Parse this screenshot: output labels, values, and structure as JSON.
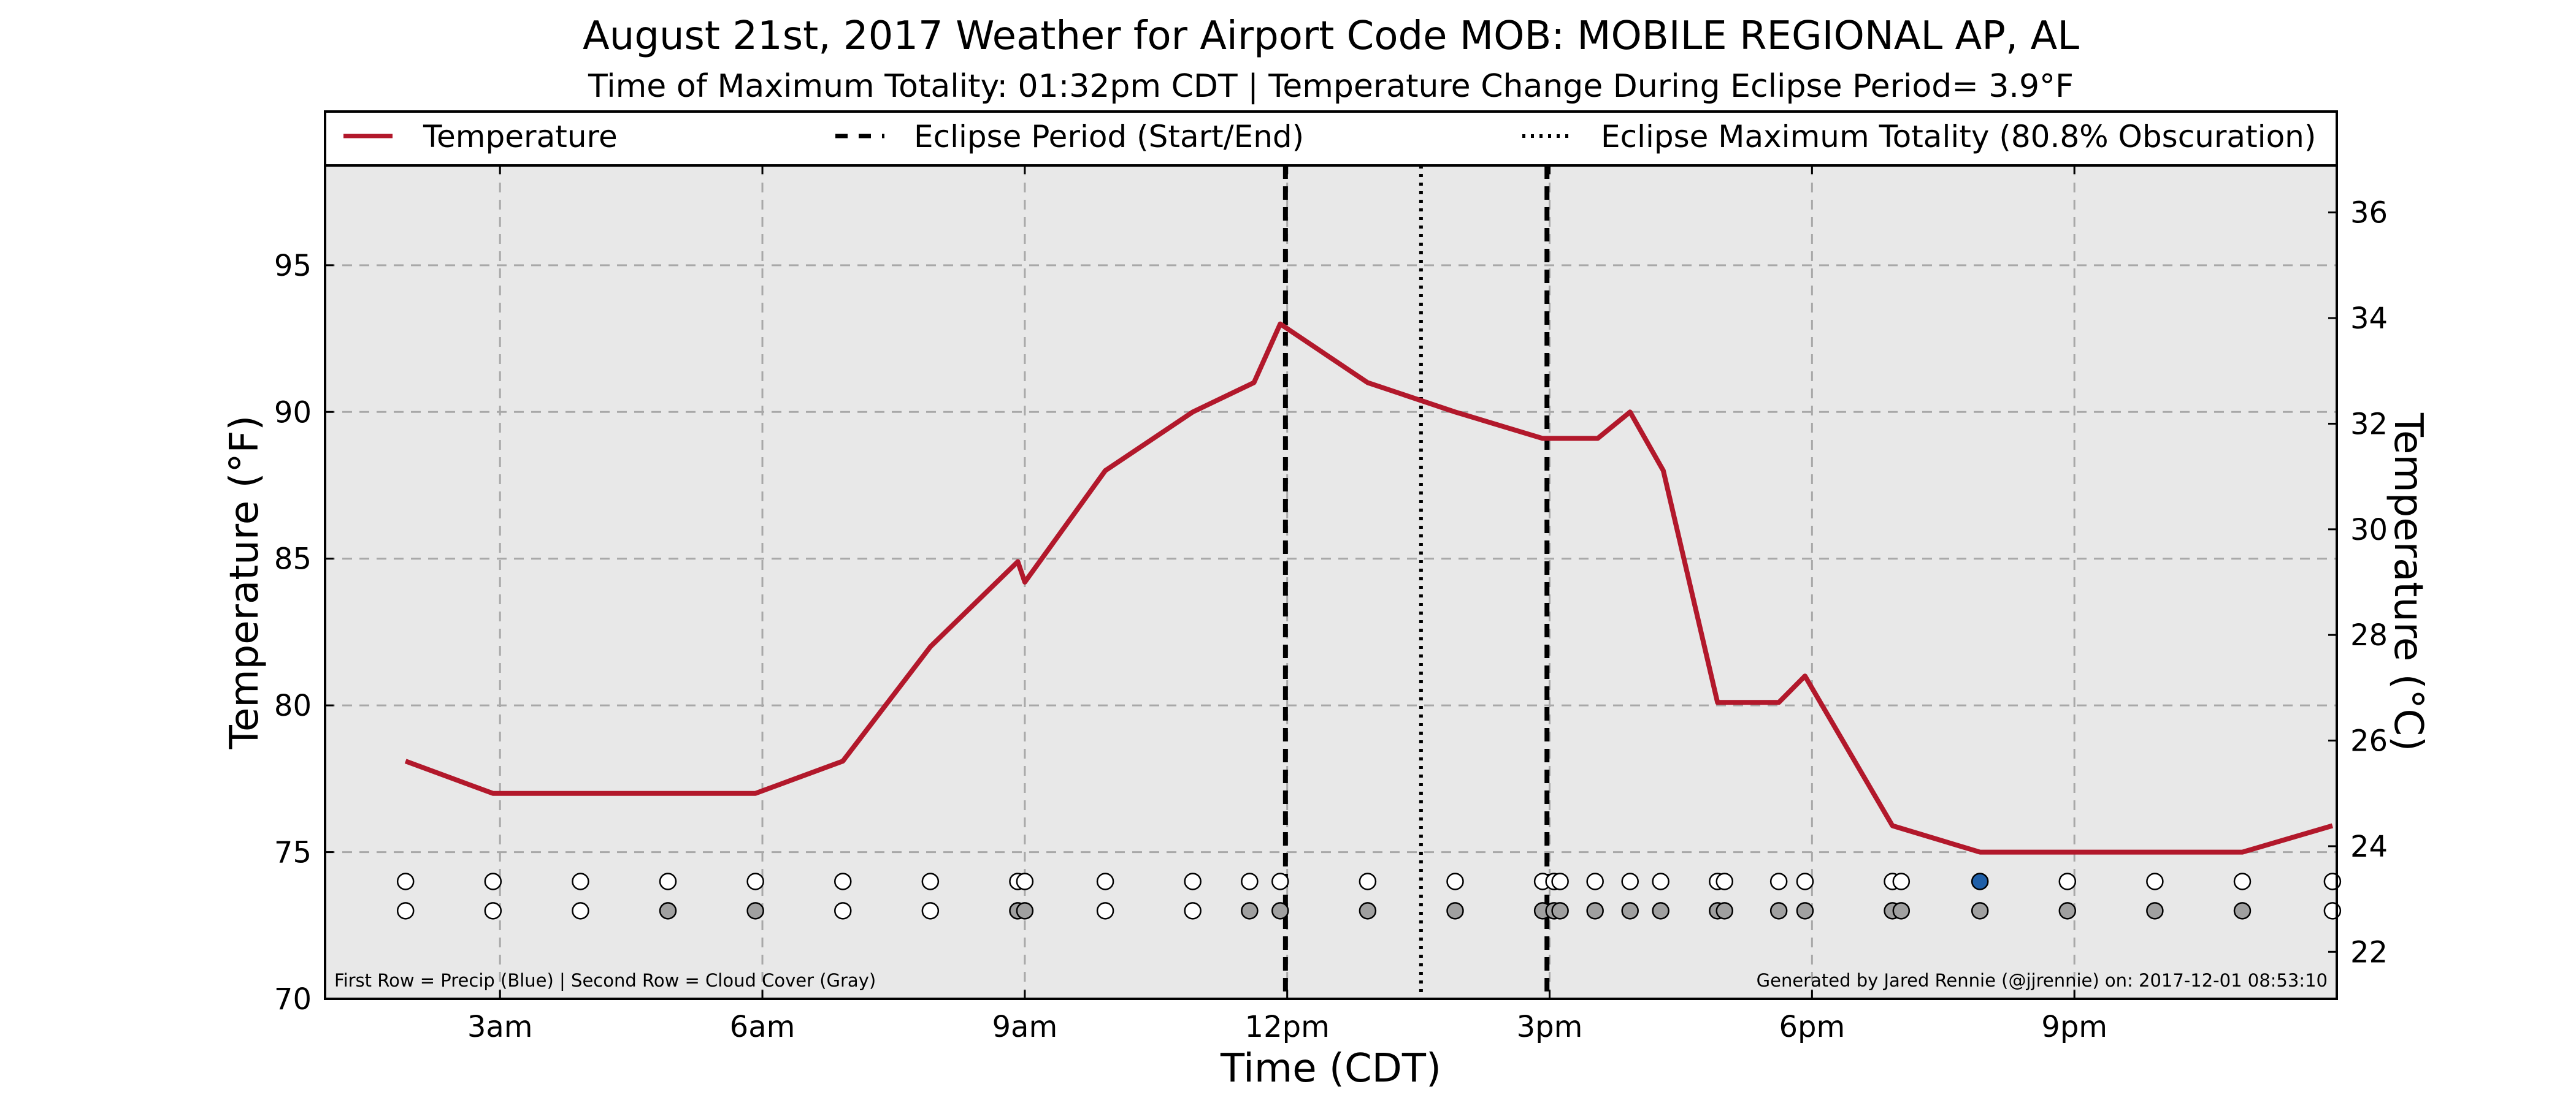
{
  "chart_data": {
    "type": "line",
    "title": "August 21st, 2017 Weather for Airport Code MOB: MOBILE REGIONAL AP, AL",
    "subtitle": "Time of Maximum Totality: 01:32pm CDT | Temperature Change During Eclipse Period= 3.9°F",
    "xlabel": "Time (CDT)",
    "ylabel": "Temperature (°F)",
    "ylabel_right": "Temperature (°C)",
    "xlim": [
      1.0,
      24.0
    ],
    "ylim": [
      70,
      98.4
    ],
    "ylim_right_C": [
      21.11,
      36.89
    ],
    "grid": true,
    "x_ticks": [
      {
        "value": 3,
        "label": "3am"
      },
      {
        "value": 6,
        "label": "6am"
      },
      {
        "value": 9,
        "label": "9am"
      },
      {
        "value": 12,
        "label": "12pm"
      },
      {
        "value": 15,
        "label": "3pm"
      },
      {
        "value": 18,
        "label": "6pm"
      },
      {
        "value": 21,
        "label": "9pm"
      }
    ],
    "y_ticks": [
      {
        "value": 70,
        "label": "70"
      },
      {
        "value": 75,
        "label": "75"
      },
      {
        "value": 80,
        "label": "80"
      },
      {
        "value": 85,
        "label": "85"
      },
      {
        "value": 90,
        "label": "90"
      },
      {
        "value": 95,
        "label": "95"
      }
    ],
    "y_ticks_right": [
      {
        "value": 22,
        "label": "22"
      },
      {
        "value": 24,
        "label": "24"
      },
      {
        "value": 26,
        "label": "26"
      },
      {
        "value": 28,
        "label": "28"
      },
      {
        "value": 30,
        "label": "30"
      },
      {
        "value": 32,
        "label": "32"
      },
      {
        "value": 34,
        "label": "34"
      },
      {
        "value": 36,
        "label": "36"
      }
    ],
    "series": [
      {
        "name": "Temperature",
        "color": "#b2182b",
        "x": [
          1.92,
          2.92,
          3.92,
          4.92,
          5.92,
          6.92,
          7.92,
          8.92,
          9.0,
          9.92,
          10.92,
          11.62,
          11.92,
          12.92,
          13.92,
          14.92,
          15.55,
          15.92,
          16.3,
          16.92,
          17.62,
          17.92,
          18.92,
          19.92,
          20.92,
          21.92,
          22.92,
          23.95
        ],
        "y": [
          78.1,
          77.0,
          77.0,
          77.0,
          77.0,
          78.1,
          82.0,
          84.9,
          84.2,
          88.0,
          90.0,
          91.0,
          93.0,
          91.0,
          90.0,
          89.1,
          89.1,
          90.0,
          88.0,
          80.1,
          80.1,
          81.0,
          75.9,
          75.0,
          75.0,
          75.0,
          75.0,
          75.9
        ]
      }
    ],
    "eclipse_period": {
      "start": 11.98,
      "end": 14.97,
      "line_color": "#000000"
    },
    "max_totality": {
      "x": 13.53,
      "line_color": "#000000"
    },
    "legend": {
      "placement": "top",
      "entries": [
        {
          "label": "Temperature",
          "style": "solid",
          "color": "#b2182b"
        },
        {
          "label": "Eclipse Period (Start/End)",
          "style": "dashed",
          "color": "#000000"
        },
        {
          "label": "Eclipse Maximum Totality (80.8% Obscuration)",
          "style": "dotted",
          "color": "#000000"
        }
      ]
    },
    "precip_row": {
      "y": 74,
      "points": [
        {
          "x": 1.92,
          "c": "white"
        },
        {
          "x": 2.92,
          "c": "white"
        },
        {
          "x": 3.92,
          "c": "white"
        },
        {
          "x": 4.92,
          "c": "white"
        },
        {
          "x": 5.92,
          "c": "white"
        },
        {
          "x": 6.92,
          "c": "white"
        },
        {
          "x": 7.92,
          "c": "white"
        },
        {
          "x": 8.92,
          "c": "white"
        },
        {
          "x": 9.0,
          "c": "white"
        },
        {
          "x": 9.92,
          "c": "white"
        },
        {
          "x": 10.92,
          "c": "white"
        },
        {
          "x": 11.57,
          "c": "white"
        },
        {
          "x": 11.92,
          "c": "white"
        },
        {
          "x": 12.92,
          "c": "white"
        },
        {
          "x": 13.92,
          "c": "white"
        },
        {
          "x": 14.92,
          "c": "white"
        },
        {
          "x": 15.05,
          "c": "white"
        },
        {
          "x": 15.12,
          "c": "white"
        },
        {
          "x": 15.52,
          "c": "white"
        },
        {
          "x": 15.92,
          "c": "white"
        },
        {
          "x": 16.27,
          "c": "white"
        },
        {
          "x": 16.92,
          "c": "white"
        },
        {
          "x": 17.0,
          "c": "white"
        },
        {
          "x": 17.62,
          "c": "white"
        },
        {
          "x": 17.92,
          "c": "white"
        },
        {
          "x": 18.92,
          "c": "white"
        },
        {
          "x": 19.02,
          "c": "white"
        },
        {
          "x": 19.92,
          "c": "blue"
        },
        {
          "x": 20.92,
          "c": "white"
        },
        {
          "x": 21.92,
          "c": "white"
        },
        {
          "x": 22.92,
          "c": "white"
        },
        {
          "x": 23.95,
          "c": "white"
        }
      ]
    },
    "cloud_row": {
      "y": 73,
      "points": [
        {
          "x": 1.92,
          "c": "white"
        },
        {
          "x": 2.92,
          "c": "white"
        },
        {
          "x": 3.92,
          "c": "white"
        },
        {
          "x": 4.92,
          "c": "gray"
        },
        {
          "x": 5.92,
          "c": "gray"
        },
        {
          "x": 6.92,
          "c": "white"
        },
        {
          "x": 7.92,
          "c": "white"
        },
        {
          "x": 8.92,
          "c": "gray"
        },
        {
          "x": 9.0,
          "c": "gray"
        },
        {
          "x": 9.92,
          "c": "white"
        },
        {
          "x": 10.92,
          "c": "white"
        },
        {
          "x": 11.57,
          "c": "gray"
        },
        {
          "x": 11.92,
          "c": "gray"
        },
        {
          "x": 12.92,
          "c": "gray"
        },
        {
          "x": 13.92,
          "c": "gray"
        },
        {
          "x": 14.92,
          "c": "gray"
        },
        {
          "x": 15.05,
          "c": "gray"
        },
        {
          "x": 15.12,
          "c": "gray"
        },
        {
          "x": 15.52,
          "c": "gray"
        },
        {
          "x": 15.92,
          "c": "gray"
        },
        {
          "x": 16.27,
          "c": "gray"
        },
        {
          "x": 16.92,
          "c": "gray"
        },
        {
          "x": 17.0,
          "c": "gray"
        },
        {
          "x": 17.62,
          "c": "gray"
        },
        {
          "x": 17.92,
          "c": "gray"
        },
        {
          "x": 18.92,
          "c": "gray"
        },
        {
          "x": 19.02,
          "c": "gray"
        },
        {
          "x": 19.92,
          "c": "gray"
        },
        {
          "x": 20.92,
          "c": "gray"
        },
        {
          "x": 21.92,
          "c": "gray"
        },
        {
          "x": 22.92,
          "c": "gray"
        },
        {
          "x": 23.95,
          "c": "white"
        }
      ]
    },
    "dot_colors": {
      "white": "#ffffff",
      "gray": "#a0a0a0",
      "blue": "#1f5fa8"
    },
    "notes": {
      "left": "First Row = Precip (Blue) | Second Row = Cloud Cover (Gray)",
      "right": "Generated by Jared Rennie (@jjrennie) on: 2017-12-01 08:53:10"
    },
    "colors": {
      "plot_background": "#e8e8e8",
      "grid": "#a8a8a8",
      "line": "#b2182b"
    }
  }
}
